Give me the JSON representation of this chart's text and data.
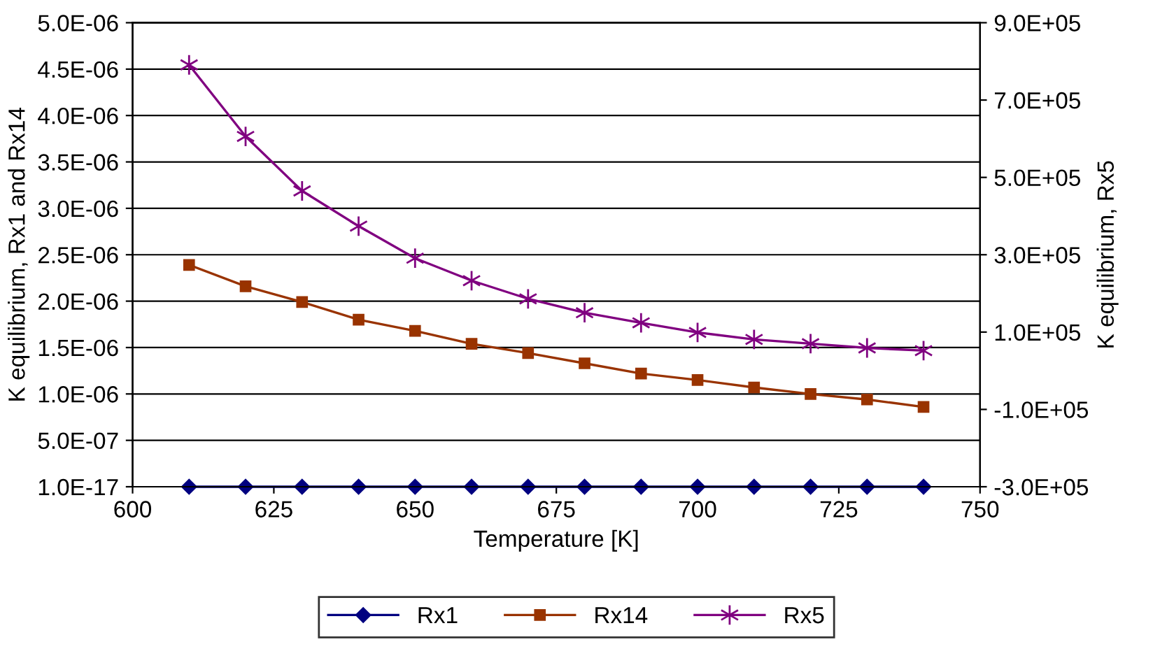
{
  "chart_data": {
    "type": "line",
    "xlabel": "Temperature [K]",
    "ylabel": "K equilibrium, Rx1 and Rx14",
    "y2label": "K equilibrium, Rx5",
    "x": [
      610,
      620,
      630,
      640,
      650,
      660,
      670,
      680,
      690,
      700,
      710,
      720,
      730,
      740
    ],
    "series": [
      {
        "name": "Rx1",
        "color": "#000080",
        "marker": "diamond",
        "values": [
          1e-17,
          1e-17,
          1e-17,
          1e-17,
          1e-17,
          1e-17,
          1e-17,
          1e-17,
          1e-17,
          1e-17,
          1e-17,
          1e-17,
          1e-17,
          1e-17
        ]
      },
      {
        "name": "Rx14",
        "color": "#993300",
        "marker": "square",
        "values": [
          2.39e-06,
          2.16e-06,
          1.99e-06,
          1.8e-06,
          1.68e-06,
          1.54e-06,
          1.44e-06,
          1.33e-06,
          1.22e-06,
          1.15e-06,
          1.07e-06,
          1e-06,
          9.4e-07,
          8.6e-07
        ]
      },
      {
        "name": "Rx5",
        "color": "#800080",
        "marker": "cross",
        "axis": "y2",
        "values": [
          791000,
          606000,
          465000,
          374000,
          291000,
          233000,
          186000,
          150000,
          124000,
          99000,
          81000,
          70000,
          59000,
          52000
        ]
      }
    ],
    "xlim": [
      600,
      750
    ],
    "xticks": [
      600,
      625,
      650,
      675,
      700,
      725,
      750
    ],
    "ylim": [
      1e-17,
      5e-06
    ],
    "yticks": [
      {
        "value": 1e-17,
        "label": "1.0E-17"
      },
      {
        "value": 5e-07,
        "label": "5.0E-07"
      },
      {
        "value": 1e-06,
        "label": "1.0E-06"
      },
      {
        "value": 1.5e-06,
        "label": "1.5E-06"
      },
      {
        "value": 2e-06,
        "label": "2.0E-06"
      },
      {
        "value": 2.5e-06,
        "label": "2.5E-06"
      },
      {
        "value": 3e-06,
        "label": "3.0E-06"
      },
      {
        "value": 3.5e-06,
        "label": "3.5E-06"
      },
      {
        "value": 4e-06,
        "label": "4.0E-06"
      },
      {
        "value": 4.5e-06,
        "label": "4.5E-06"
      },
      {
        "value": 5e-06,
        "label": "5.0E-06"
      }
    ],
    "y2lim": [
      -300000,
      900000
    ],
    "y2ticks": [
      {
        "value": -300000,
        "label": "-3.0E+05"
      },
      {
        "value": -100000,
        "label": "-1.0E+05"
      },
      {
        "value": 100000,
        "label": "1.0E+05"
      },
      {
        "value": 300000,
        "label": "3.0E+05"
      },
      {
        "value": 500000,
        "label": "5.0E+05"
      },
      {
        "value": 700000,
        "label": "7.0E+05"
      },
      {
        "value": 900000,
        "label": "9.0E+05"
      }
    ],
    "grid": "y",
    "legend": "bottom",
    "line_style": "solid"
  }
}
